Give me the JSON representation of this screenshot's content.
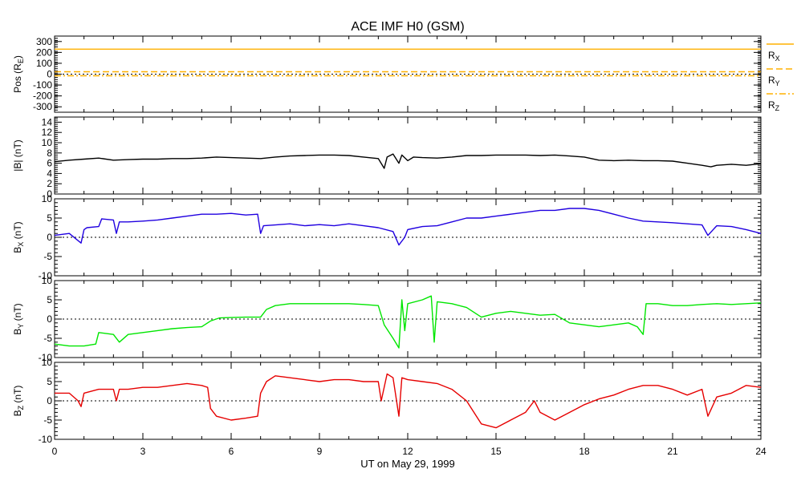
{
  "chart_data": {
    "type": "line",
    "title": "ACE IMF H0 (GSM)",
    "xlabel": "UT on May 29, 1999",
    "x_ticks": [
      "0",
      "3",
      "6",
      "9",
      "12",
      "15",
      "18",
      "21",
      "24"
    ],
    "xlim": [
      0,
      24
    ],
    "panels": [
      {
        "id": "pos",
        "ylabel": "Pos (R",
        "ylabel_sub": "E",
        "ylabel_tail": ")",
        "ylim": [
          -350,
          350
        ],
        "y_ticks": [
          -300,
          -200,
          -100,
          0,
          100,
          200,
          300
        ],
        "zero_line": true,
        "series": [
          {
            "name": "R",
            "sub": "X",
            "color": "#ffb000",
            "dash": "solid",
            "x": [
              0,
              24
            ],
            "y": [
              230,
              230
            ]
          },
          {
            "name": "R",
            "sub": "Y",
            "color": "#ffb000",
            "dash": "dashed",
            "x": [
              0,
              24
            ],
            "y": [
              22,
              22
            ]
          },
          {
            "name": "R",
            "sub": "Z",
            "color": "#ffb000",
            "dash": "dashdot",
            "x": [
              0,
              24
            ],
            "y": [
              -15,
              -15
            ]
          }
        ]
      },
      {
        "id": "bmag",
        "ylabel": "|B| (nT)",
        "ylim": [
          0,
          15
        ],
        "y_ticks": [
          0,
          2,
          4,
          6,
          8,
          10,
          12,
          14
        ],
        "zero_line": false,
        "series": [
          {
            "name": "|B|",
            "color": "#000000",
            "x": [
              0,
              0.5,
              1,
              1.5,
              2,
              2.5,
              3,
              3.5,
              4,
              4.5,
              5,
              5.5,
              6,
              6.5,
              7,
              7.5,
              8,
              8.5,
              9,
              9.5,
              10,
              10.5,
              11,
              11.2,
              11.3,
              11.5,
              11.7,
              11.8,
              12,
              12.2,
              12.5,
              13,
              13.5,
              14,
              14.5,
              15,
              15.5,
              16,
              16.5,
              17,
              17.5,
              18,
              18.5,
              19,
              19.5,
              20,
              20.5,
              21,
              21.5,
              22,
              22.3,
              22.5,
              23,
              23.5,
              24
            ],
            "y": [
              6.3,
              6.6,
              6.8,
              7.0,
              6.6,
              6.7,
              6.8,
              6.8,
              6.9,
              6.9,
              7.0,
              7.2,
              7.1,
              7.0,
              6.9,
              7.2,
              7.4,
              7.5,
              7.6,
              7.6,
              7.5,
              7.2,
              6.9,
              5.0,
              7.2,
              7.8,
              6.0,
              7.6,
              6.5,
              7.2,
              7.1,
              7.0,
              7.2,
              7.5,
              7.5,
              7.6,
              7.6,
              7.6,
              7.5,
              7.6,
              7.4,
              7.2,
              6.6,
              6.5,
              6.6,
              6.5,
              6.5,
              6.4,
              6.0,
              5.6,
              5.3,
              5.6,
              5.8,
              5.6,
              5.9
            ]
          }
        ]
      },
      {
        "id": "bx",
        "ylabel": "B",
        "ylabel_sub": "X",
        "ylabel_tail": " (nT)",
        "ylim": [
          -10,
          10
        ],
        "y_ticks": [
          -10,
          -5,
          0,
          5,
          10
        ],
        "zero_line": true,
        "series": [
          {
            "name": "Bx",
            "color": "#2000e0",
            "x": [
              0,
              0.5,
              0.9,
              1.0,
              1.1,
              1.5,
              1.6,
              2.0,
              2.1,
              2.2,
              2.5,
              3,
              3.5,
              4,
              4.5,
              5,
              5.5,
              6,
              6.5,
              6.9,
              7.0,
              7.1,
              7.5,
              8,
              8.5,
              9,
              9.5,
              10,
              10.5,
              11,
              11.5,
              11.7,
              11.9,
              12,
              12.5,
              13,
              13.5,
              14,
              14.5,
              15,
              15.5,
              16,
              16.5,
              17,
              17.5,
              18,
              18.5,
              19,
              19.5,
              20,
              20.5,
              21,
              21.5,
              22,
              22.2,
              22.5,
              23,
              23.5,
              24
            ],
            "y": [
              0.5,
              1.0,
              -1.5,
              2.0,
              2.5,
              2.8,
              4.8,
              4.5,
              1.0,
              4.0,
              4.0,
              4.2,
              4.5,
              5.0,
              5.5,
              6.0,
              6.0,
              6.2,
              5.8,
              6.0,
              1.0,
              3.0,
              3.2,
              3.5,
              3.0,
              3.3,
              3.0,
              3.5,
              3.0,
              2.5,
              1.5,
              -2.0,
              0.0,
              2.0,
              2.8,
              3.0,
              4.0,
              5.0,
              5.0,
              5.5,
              6.0,
              6.5,
              7.0,
              7.0,
              7.5,
              7.5,
              7.0,
              6.0,
              5.0,
              4.2,
              4.0,
              3.8,
              3.5,
              3.2,
              0.5,
              3.0,
              2.8,
              2.0,
              1.0
            ]
          }
        ]
      },
      {
        "id": "by",
        "ylabel": "B",
        "ylabel_sub": "Y",
        "ylabel_tail": " (nT)",
        "ylim": [
          -10,
          10
        ],
        "y_ticks": [
          -10,
          -5,
          0,
          5,
          10
        ],
        "zero_line": true,
        "series": [
          {
            "name": "By",
            "color": "#00e600",
            "x": [
              0,
              0.5,
              1,
              1.4,
              1.5,
              2,
              2.2,
              2.5,
              3,
              3.5,
              4,
              4.5,
              5,
              5.3,
              5.6,
              6,
              6.5,
              7,
              7.2,
              7.5,
              8,
              8.5,
              9,
              9.5,
              10,
              10.5,
              11,
              11.2,
              11.5,
              11.7,
              11.8,
              11.9,
              12,
              12.5,
              12.8,
              12.9,
              13,
              13.5,
              14,
              14.5,
              15,
              15.5,
              16,
              16.5,
              17,
              17.5,
              18,
              18.5,
              19,
              19.5,
              19.8,
              20,
              20.1,
              20.5,
              21,
              21.5,
              22,
              22.5,
              23,
              23.5,
              24
            ],
            "y": [
              -6.5,
              -7.0,
              -7.0,
              -6.5,
              -3.5,
              -4.0,
              -6.0,
              -4.0,
              -3.5,
              -3.0,
              -2.5,
              -2.2,
              -2.0,
              -0.5,
              0.3,
              0.4,
              0.5,
              0.5,
              2.5,
              3.5,
              4.0,
              4.0,
              4.0,
              4.0,
              4.0,
              3.8,
              3.5,
              -1.5,
              -5.0,
              -7.5,
              5.0,
              -3.0,
              4.0,
              5.0,
              6.0,
              -6.0,
              4.5,
              4.0,
              3.0,
              0.5,
              1.5,
              2.0,
              1.5,
              1.0,
              1.2,
              -1.0,
              -1.5,
              -2.0,
              -1.5,
              -1.0,
              -2.0,
              -4.0,
              4.0,
              4.0,
              3.5,
              3.5,
              3.8,
              4.0,
              3.8,
              4.0,
              4.2
            ]
          }
        ]
      },
      {
        "id": "bz",
        "ylabel": "B",
        "ylabel_sub": "Z",
        "ylabel_tail": " (nT)",
        "ylim": [
          -10,
          10
        ],
        "y_ticks": [
          -10,
          -5,
          0,
          5,
          10
        ],
        "zero_line": true,
        "series": [
          {
            "name": "Bz",
            "color": "#e60000",
            "x": [
              0,
              0.5,
              0.8,
              0.9,
              1.0,
              1.5,
              2,
              2.1,
              2.2,
              2.5,
              3,
              3.5,
              4,
              4.5,
              5,
              5.2,
              5.3,
              5.5,
              6,
              6.5,
              6.9,
              7.0,
              7.2,
              7.5,
              8,
              8.5,
              9,
              9.5,
              10,
              10.5,
              11,
              11.1,
              11.3,
              11.5,
              11.7,
              11.8,
              12,
              12.5,
              13,
              13.5,
              14,
              14.5,
              15,
              15.5,
              16,
              16.3,
              16.5,
              17,
              17.5,
              18,
              18.5,
              19,
              19.5,
              20,
              20.5,
              21,
              21.5,
              22,
              22.2,
              22.5,
              23,
              23.5,
              24
            ],
            "y": [
              2.0,
              2.0,
              0.0,
              -1.5,
              2.0,
              3.0,
              3.0,
              0.0,
              3.0,
              3.0,
              3.5,
              3.5,
              4.0,
              4.5,
              4.0,
              3.5,
              -2.0,
              -4.0,
              -5.0,
              -4.5,
              -4.0,
              2.0,
              5.0,
              6.5,
              6.0,
              5.5,
              5.0,
              5.5,
              5.5,
              5.0,
              5.0,
              0.0,
              7.0,
              6.0,
              -4.0,
              6.0,
              5.5,
              5.0,
              4.5,
              3.0,
              0.0,
              -6.0,
              -7.0,
              -5.0,
              -3.0,
              0.0,
              -3.0,
              -5.0,
              -3.0,
              -1.0,
              0.5,
              1.5,
              3.0,
              4.0,
              4.0,
              3.0,
              1.5,
              3.0,
              -4.0,
              1.0,
              2.0,
              4.0,
              3.5
            ]
          }
        ]
      }
    ],
    "legend": {
      "placement": "right of top panel"
    }
  }
}
